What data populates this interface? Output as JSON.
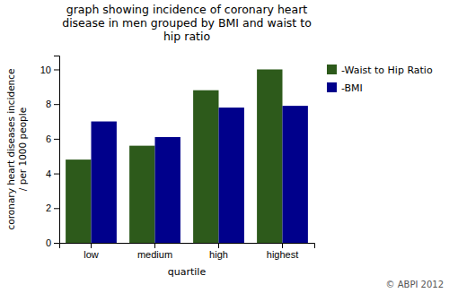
{
  "chart_data": {
    "type": "bar",
    "title": "graph showing incidence of coronary heart\ndisease in men grouped by BMI and waist to\nhip ratio",
    "xlabel": "quartile",
    "ylabel": "coronary heart diseases incidence\n/ per 1000 people",
    "categories": [
      "low",
      "medium",
      "high",
      "highest"
    ],
    "series": [
      {
        "name": "-Waist to Hip Ratio",
        "color": "#2d5a1b",
        "values": [
          4.8,
          5.6,
          8.8,
          10.0
        ]
      },
      {
        "name": "-BMI",
        "color": "#00008b",
        "values": [
          7.0,
          6.1,
          7.8,
          7.9
        ]
      }
    ],
    "ylim": [
      0,
      10.8
    ],
    "yticks": [
      0,
      2,
      4,
      6,
      8,
      10
    ],
    "grid": false,
    "legend": "right",
    "annotations": [
      "© ABPI 2012"
    ]
  }
}
